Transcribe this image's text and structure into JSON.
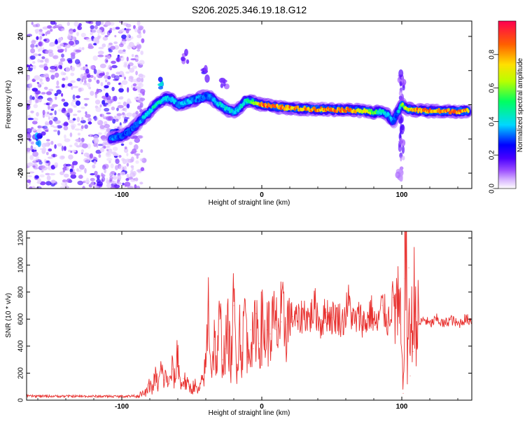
{
  "title": "S206.2025.346.19.18.G12",
  "chart_data": [
    {
      "type": "heatmap",
      "name": "spectrogram",
      "xlabel": "Height of straight line (km)",
      "ylabel": "Frequency (Hz)",
      "xlim": [
        -168,
        150
      ],
      "ylim": [
        -24.5,
        24.5
      ],
      "xticks": [
        -100,
        0,
        100
      ],
      "yticks": [
        -20,
        -10,
        0,
        10,
        20
      ],
      "colorbar": {
        "label": "Normalized spectral amplitude",
        "ticks": [
          0.0,
          0.2,
          0.4,
          0.6,
          0.8
        ],
        "range": [
          0,
          1
        ],
        "colors": [
          "#ffffff",
          "#b87fff",
          "#4a00ff",
          "#0000ff",
          "#00d8ff",
          "#00ff60",
          "#b8ff00",
          "#ffe000",
          "#ff6000",
          "#ff0040"
        ]
      },
      "ridge": {
        "x": [
          -108,
          -100,
          -95,
          -90,
          -85,
          -80,
          -76,
          -72,
          -68,
          -64,
          -60,
          -56,
          -52,
          -48,
          -44,
          -40,
          -36,
          -32,
          -28,
          -24,
          -20,
          -16,
          -12,
          -8,
          -4,
          0,
          10,
          20,
          30,
          40,
          50,
          60,
          70,
          80,
          86,
          90,
          94,
          96,
          100,
          104,
          110,
          120,
          130,
          140,
          148
        ],
        "freq": [
          -10,
          -9,
          -8,
          -6,
          -4,
          -2,
          0,
          1,
          2,
          1.5,
          0,
          0.5,
          1,
          1.5,
          2,
          2.5,
          2,
          0.5,
          -0.5,
          -1.5,
          -2,
          -1,
          1,
          1.2,
          0.5,
          0,
          -0.6,
          -1,
          -1.2,
          -1.3,
          -1.4,
          -1.5,
          -1.7,
          -2.2,
          -2,
          -3,
          -5,
          -3,
          0,
          -1.2,
          -1.6,
          -1.8,
          -1.9,
          -1.9,
          -1.8
        ],
        "amplitude": [
          0.35,
          0.3,
          0.3,
          0.35,
          0.4,
          0.45,
          0.5,
          0.45,
          0.4,
          0.4,
          0.35,
          0.4,
          0.4,
          0.35,
          0.35,
          0.3,
          0.35,
          0.4,
          0.45,
          0.45,
          0.45,
          0.4,
          0.5,
          0.55,
          0.7,
          0.9,
          0.92,
          0.88,
          0.85,
          0.85,
          0.9,
          0.9,
          0.8,
          0.6,
          0.45,
          0.4,
          0.35,
          0.3,
          0.6,
          0.75,
          0.85,
          0.88,
          0.9,
          0.9,
          0.85
        ]
      },
      "noise_region_x": [
        -168,
        -90
      ],
      "noise_blobs": [
        {
          "x": -160,
          "f": -10,
          "amp": 0.35
        },
        {
          "x": -105,
          "f": -9,
          "amp": 0.3
        },
        {
          "x": -72,
          "f": 6,
          "amp": 0.4
        },
        {
          "x": -55,
          "f": 14,
          "amp": 0.15
        },
        {
          "x": -40,
          "f": 9,
          "amp": 0.2
        },
        {
          "x": -27,
          "f": 6,
          "amp": 0.15
        },
        {
          "x": 100,
          "f": 8,
          "amp": 0.12
        },
        {
          "x": 99,
          "f": -20,
          "amp": 0.1
        }
      ]
    },
    {
      "type": "line",
      "name": "snr",
      "xlabel": "Height of straight line (km)",
      "ylabel": "SNR (10 * v/v)",
      "xlim": [
        -168,
        150
      ],
      "ylim": [
        0,
        1250
      ],
      "xticks": [
        -100,
        0,
        100
      ],
      "yticks": [
        0,
        200,
        400,
        600,
        800,
        1000,
        1200
      ],
      "color": "#e8302e",
      "series": [
        {
          "name": "SNR",
          "x": [
            -168,
            -100,
            -90,
            -85,
            -82,
            -80,
            -78,
            -76,
            -74,
            -72,
            -70,
            -68,
            -66,
            -64,
            -62,
            -60,
            -58,
            -56,
            -54,
            -52,
            -50,
            -48,
            -46,
            -44,
            -42,
            -40,
            -38,
            -36,
            -34,
            -32,
            -30,
            -28,
            -26,
            -24,
            -22,
            -20,
            -18,
            -16,
            -14,
            -12,
            -10,
            -8,
            -6,
            -4,
            -2,
            0,
            2,
            4,
            6,
            8,
            10,
            14,
            18,
            22,
            26,
            30,
            34,
            38,
            42,
            46,
            50,
            54,
            58,
            62,
            66,
            70,
            74,
            78,
            82,
            86,
            90,
            94,
            97,
            99,
            101,
            102,
            103,
            104,
            105,
            106,
            107,
            108,
            109,
            110,
            112,
            116,
            120,
            125,
            130,
            135,
            140,
            145,
            150
          ],
          "values": [
            30,
            28,
            32,
            45,
            60,
            120,
            80,
            180,
            100,
            230,
            150,
            170,
            120,
            230,
            140,
            380,
            90,
            160,
            120,
            100,
            80,
            120,
            60,
            90,
            160,
            250,
            730,
            200,
            450,
            250,
            600,
            300,
            380,
            520,
            260,
            700,
            240,
            560,
            300,
            740,
            320,
            520,
            380,
            640,
            420,
            560,
            460,
            520,
            490,
            560,
            520,
            580,
            560,
            620,
            580,
            650,
            600,
            690,
            560,
            650,
            610,
            620,
            580,
            720,
            570,
            620,
            560,
            660,
            540,
            700,
            580,
            760,
            640,
            560,
            50,
            900,
            1250,
            120,
            980,
            180,
            840,
            360,
            820,
            620,
            560,
            600,
            560,
            600,
            560,
            600,
            560,
            600,
            590
          ]
        }
      ]
    }
  ]
}
